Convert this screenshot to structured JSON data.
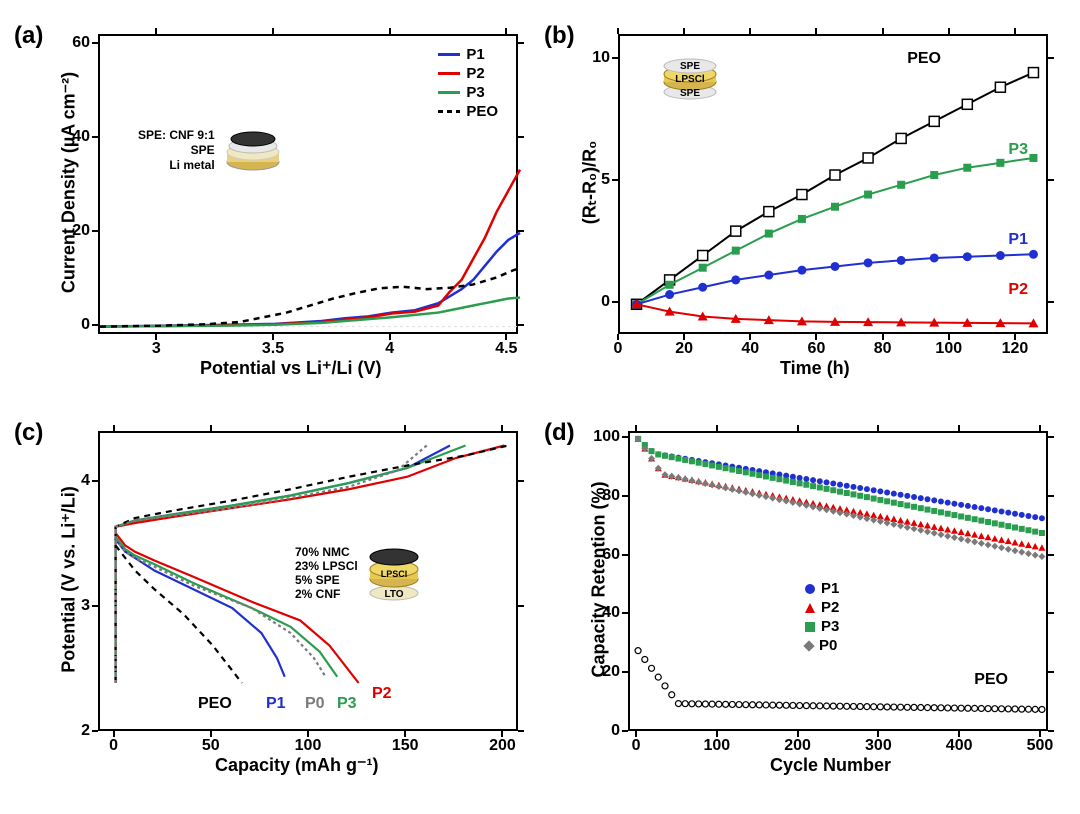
{
  "colors": {
    "P1": "#2030d0",
    "P2": "#e00000",
    "P3": "#2a9d4f",
    "PEO": "#000000",
    "P0": "#7a7a7a",
    "axis": "#000000",
    "bg": "#ffffff",
    "dashed_gray": "#888888"
  },
  "panel_a": {
    "label": "(a)",
    "type": "line",
    "xlabel": "Potential vs Li⁺/Li (V)",
    "ylabel": "Current Density (µA cm⁻²)",
    "xlim": [
      2.75,
      4.55
    ],
    "ylim": [
      -2,
      62
    ],
    "xticks": [
      3,
      3.5,
      4,
      4.5
    ],
    "yticks": [
      0,
      20,
      40,
      60
    ],
    "inset_labels": [
      "SPE: CNF 9:1",
      "SPE",
      "Li metal"
    ],
    "legend": [
      "P1",
      "P2",
      "P3",
      "PEO"
    ],
    "series": {
      "P1": [
        [
          2.75,
          0
        ],
        [
          3.0,
          0.2
        ],
        [
          3.3,
          0.4
        ],
        [
          3.5,
          0.6
        ],
        [
          3.7,
          1.2
        ],
        [
          3.8,
          1.8
        ],
        [
          3.9,
          2.2
        ],
        [
          4.0,
          3.0
        ],
        [
          4.1,
          3.5
        ],
        [
          4.2,
          5.0
        ],
        [
          4.25,
          6.5
        ],
        [
          4.3,
          8.0
        ],
        [
          4.35,
          10.0
        ],
        [
          4.4,
          13.0
        ],
        [
          4.45,
          16.0
        ],
        [
          4.5,
          18.5
        ],
        [
          4.55,
          20.0
        ]
      ],
      "P2": [
        [
          2.75,
          0
        ],
        [
          3.0,
          0.1
        ],
        [
          3.3,
          0.3
        ],
        [
          3.5,
          0.5
        ],
        [
          3.7,
          1.0
        ],
        [
          3.8,
          1.5
        ],
        [
          3.9,
          2.0
        ],
        [
          4.0,
          2.8
        ],
        [
          4.1,
          3.2
        ],
        [
          4.2,
          4.5
        ],
        [
          4.25,
          7.5
        ],
        [
          4.3,
          10.0
        ],
        [
          4.35,
          14.5
        ],
        [
          4.4,
          19.0
        ],
        [
          4.45,
          24.5
        ],
        [
          4.5,
          29.0
        ],
        [
          4.55,
          33.5
        ]
      ],
      "P3": [
        [
          2.75,
          0
        ],
        [
          3.0,
          0.1
        ],
        [
          3.3,
          0.2
        ],
        [
          3.5,
          0.4
        ],
        [
          3.7,
          0.8
        ],
        [
          3.8,
          1.2
        ],
        [
          3.9,
          1.6
        ],
        [
          4.0,
          2.0
        ],
        [
          4.1,
          2.5
        ],
        [
          4.2,
          3.0
        ],
        [
          4.25,
          3.5
        ],
        [
          4.3,
          4.0
        ],
        [
          4.35,
          4.5
        ],
        [
          4.4,
          5.0
        ],
        [
          4.45,
          5.5
        ],
        [
          4.5,
          6.0
        ],
        [
          4.55,
          6.2
        ]
      ],
      "PEO": [
        [
          2.75,
          0
        ],
        [
          3.0,
          0.2
        ],
        [
          3.2,
          0.5
        ],
        [
          3.35,
          1.0
        ],
        [
          3.45,
          2.0
        ],
        [
          3.55,
          3.0
        ],
        [
          3.65,
          4.5
        ],
        [
          3.75,
          6.0
        ],
        [
          3.85,
          7.2
        ],
        [
          3.95,
          8.2
        ],
        [
          4.05,
          8.5
        ],
        [
          4.15,
          8.0
        ],
        [
          4.25,
          8.3
        ],
        [
          4.35,
          9.0
        ],
        [
          4.45,
          10.5
        ],
        [
          4.52,
          12.0
        ],
        [
          4.55,
          12.5
        ]
      ]
    }
  },
  "panel_b": {
    "label": "(b)",
    "type": "line-markers",
    "xlabel": "Time (h)",
    "ylabel": "(Rₜ-R₀)/R₀",
    "xlim": [
      0,
      130
    ],
    "ylim": [
      -1.3,
      11
    ],
    "xticks": [
      0,
      20,
      40,
      60,
      80,
      100,
      120
    ],
    "yticks": [
      0,
      5,
      10
    ],
    "inset_labels": [
      "SPE",
      "LPSCl",
      "SPE"
    ],
    "legend": [
      "PEO",
      "P3",
      "P1",
      "P2"
    ],
    "series": {
      "PEO": {
        "marker": "open-square",
        "data": [
          [
            5,
            0
          ],
          [
            15,
            1.0
          ],
          [
            25,
            2.0
          ],
          [
            35,
            3.0
          ],
          [
            45,
            3.8
          ],
          [
            55,
            4.5
          ],
          [
            65,
            5.3
          ],
          [
            75,
            6.0
          ],
          [
            85,
            6.8
          ],
          [
            95,
            7.5
          ],
          [
            105,
            8.2
          ],
          [
            115,
            8.9
          ],
          [
            125,
            9.5
          ]
        ]
      },
      "P3": {
        "marker": "square",
        "data": [
          [
            5,
            0
          ],
          [
            15,
            0.8
          ],
          [
            25,
            1.5
          ],
          [
            35,
            2.2
          ],
          [
            45,
            2.9
          ],
          [
            55,
            3.5
          ],
          [
            65,
            4.0
          ],
          [
            75,
            4.5
          ],
          [
            85,
            4.9
          ],
          [
            95,
            5.3
          ],
          [
            105,
            5.6
          ],
          [
            115,
            5.8
          ],
          [
            125,
            6.0
          ]
        ]
      },
      "P1": {
        "marker": "circle",
        "data": [
          [
            5,
            0
          ],
          [
            15,
            0.4
          ],
          [
            25,
            0.7
          ],
          [
            35,
            1.0
          ],
          [
            45,
            1.2
          ],
          [
            55,
            1.4
          ],
          [
            65,
            1.55
          ],
          [
            75,
            1.7
          ],
          [
            85,
            1.8
          ],
          [
            95,
            1.9
          ],
          [
            105,
            1.95
          ],
          [
            115,
            2.0
          ],
          [
            125,
            2.05
          ]
        ]
      },
      "P2": {
        "marker": "triangle",
        "data": [
          [
            5,
            0
          ],
          [
            15,
            -0.3
          ],
          [
            25,
            -0.5
          ],
          [
            35,
            -0.6
          ],
          [
            45,
            -0.65
          ],
          [
            55,
            -0.7
          ],
          [
            65,
            -0.72
          ],
          [
            75,
            -0.73
          ],
          [
            85,
            -0.74
          ],
          [
            95,
            -0.75
          ],
          [
            105,
            -0.76
          ],
          [
            115,
            -0.77
          ],
          [
            125,
            -0.78
          ]
        ]
      }
    }
  },
  "panel_c": {
    "label": "(c)",
    "type": "line",
    "xlabel": "Capacity (mAh g⁻¹)",
    "ylabel": "Potential (V vs. Li⁺/Li)",
    "xlim": [
      -8,
      208
    ],
    "ylim": [
      2.0,
      4.4
    ],
    "xticks": [
      0,
      50,
      100,
      150,
      200
    ],
    "yticks": [
      2,
      3,
      4
    ],
    "inset_labels": [
      "70% NMC",
      "23% LPSCl",
      "5% SPE",
      "2% CNF"
    ],
    "inset_stack": [
      "LPSCl",
      "LTO"
    ],
    "series_labels": [
      "PEO",
      "P1",
      "P0",
      "P3",
      "P2"
    ],
    "charge": {
      "P1": [
        [
          0,
          3.65
        ],
        [
          10,
          3.7
        ],
        [
          30,
          3.75
        ],
        [
          60,
          3.82
        ],
        [
          90,
          3.9
        ],
        [
          120,
          4.0
        ],
        [
          150,
          4.12
        ],
        [
          172,
          4.3
        ]
      ],
      "P2": [
        [
          0,
          3.65
        ],
        [
          10,
          3.68
        ],
        [
          30,
          3.73
        ],
        [
          60,
          3.8
        ],
        [
          90,
          3.87
        ],
        [
          120,
          3.95
        ],
        [
          150,
          4.05
        ],
        [
          175,
          4.2
        ],
        [
          200,
          4.3
        ]
      ],
      "P3": [
        [
          0,
          3.65
        ],
        [
          10,
          3.7
        ],
        [
          30,
          3.75
        ],
        [
          60,
          3.82
        ],
        [
          90,
          3.9
        ],
        [
          120,
          4.0
        ],
        [
          150,
          4.12
        ],
        [
          180,
          4.3
        ]
      ],
      "PEO": [
        [
          0,
          3.65
        ],
        [
          10,
          3.72
        ],
        [
          30,
          3.78
        ],
        [
          60,
          3.86
        ],
        [
          90,
          3.95
        ],
        [
          120,
          4.05
        ],
        [
          150,
          4.14
        ],
        [
          180,
          4.22
        ],
        [
          202,
          4.3
        ]
      ],
      "P0": [
        [
          0,
          3.65
        ],
        [
          10,
          3.7
        ],
        [
          30,
          3.74
        ],
        [
          60,
          3.8
        ],
        [
          90,
          3.88
        ],
        [
          120,
          3.97
        ],
        [
          145,
          4.1
        ],
        [
          160,
          4.3
        ]
      ]
    },
    "discharge": {
      "P1": [
        [
          0,
          3.55
        ],
        [
          5,
          3.45
        ],
        [
          10,
          3.4
        ],
        [
          20,
          3.3
        ],
        [
          40,
          3.15
        ],
        [
          60,
          3.0
        ],
        [
          75,
          2.8
        ],
        [
          83,
          2.6
        ],
        [
          87,
          2.45
        ]
      ],
      "P2": [
        [
          0,
          3.6
        ],
        [
          5,
          3.5
        ],
        [
          10,
          3.45
        ],
        [
          20,
          3.38
        ],
        [
          40,
          3.25
        ],
        [
          70,
          3.05
        ],
        [
          95,
          2.9
        ],
        [
          110,
          2.7
        ],
        [
          120,
          2.5
        ],
        [
          125,
          2.4
        ]
      ],
      "P3": [
        [
          0,
          3.57
        ],
        [
          5,
          3.47
        ],
        [
          10,
          3.42
        ],
        [
          20,
          3.35
        ],
        [
          40,
          3.2
        ],
        [
          70,
          3.0
        ],
        [
          90,
          2.85
        ],
        [
          105,
          2.65
        ],
        [
          114,
          2.45
        ]
      ],
      "PEO": [
        [
          0,
          3.5
        ],
        [
          5,
          3.4
        ],
        [
          10,
          3.3
        ],
        [
          20,
          3.15
        ],
        [
          35,
          2.95
        ],
        [
          50,
          2.7
        ],
        [
          60,
          2.5
        ],
        [
          65,
          2.4
        ]
      ],
      "P0": [
        [
          0,
          3.55
        ],
        [
          5,
          3.45
        ],
        [
          10,
          3.4
        ],
        [
          20,
          3.33
        ],
        [
          40,
          3.18
        ],
        [
          70,
          3.0
        ],
        [
          90,
          2.8
        ],
        [
          102,
          2.6
        ],
        [
          108,
          2.45
        ]
      ]
    },
    "vertical_start": true
  },
  "panel_d": {
    "label": "(d)",
    "type": "scatter",
    "xlabel": "Cycle Number",
    "ylabel": "Capacity Retention (%)",
    "xlim": [
      -10,
      510
    ],
    "ylim": [
      0,
      102
    ],
    "xticks": [
      0,
      100,
      200,
      300,
      400,
      500
    ],
    "yticks": [
      0,
      20,
      40,
      60,
      80,
      100
    ],
    "legend": [
      {
        "name": "P1",
        "marker": "circle",
        "color": "#2030d0"
      },
      {
        "name": "P2",
        "marker": "triangle",
        "color": "#e00000"
      },
      {
        "name": "P3",
        "marker": "square",
        "color": "#2a9d4f"
      },
      {
        "name": "P0",
        "marker": "diamond",
        "color": "#7a7a7a"
      }
    ],
    "peo_label": "PEO",
    "series": {
      "P1": {
        "start": 100,
        "end": 73,
        "slope": "steady",
        "color": "#2030d0",
        "marker": "circle"
      },
      "P2": {
        "start": 100,
        "end": 63,
        "slope": "drop-early",
        "color": "#e00000",
        "marker": "triangle"
      },
      "P3": {
        "start": 100,
        "end": 68,
        "slope": "steady",
        "color": "#2a9d4f",
        "marker": "square"
      },
      "P0": {
        "start": 100,
        "end": 60,
        "slope": "drop-early",
        "color": "#7a7a7a",
        "marker": "diamond"
      },
      "PEO": {
        "start": 28,
        "end": 8,
        "slope": "sharp",
        "color": "#000000",
        "marker": "open-circle"
      }
    }
  }
}
